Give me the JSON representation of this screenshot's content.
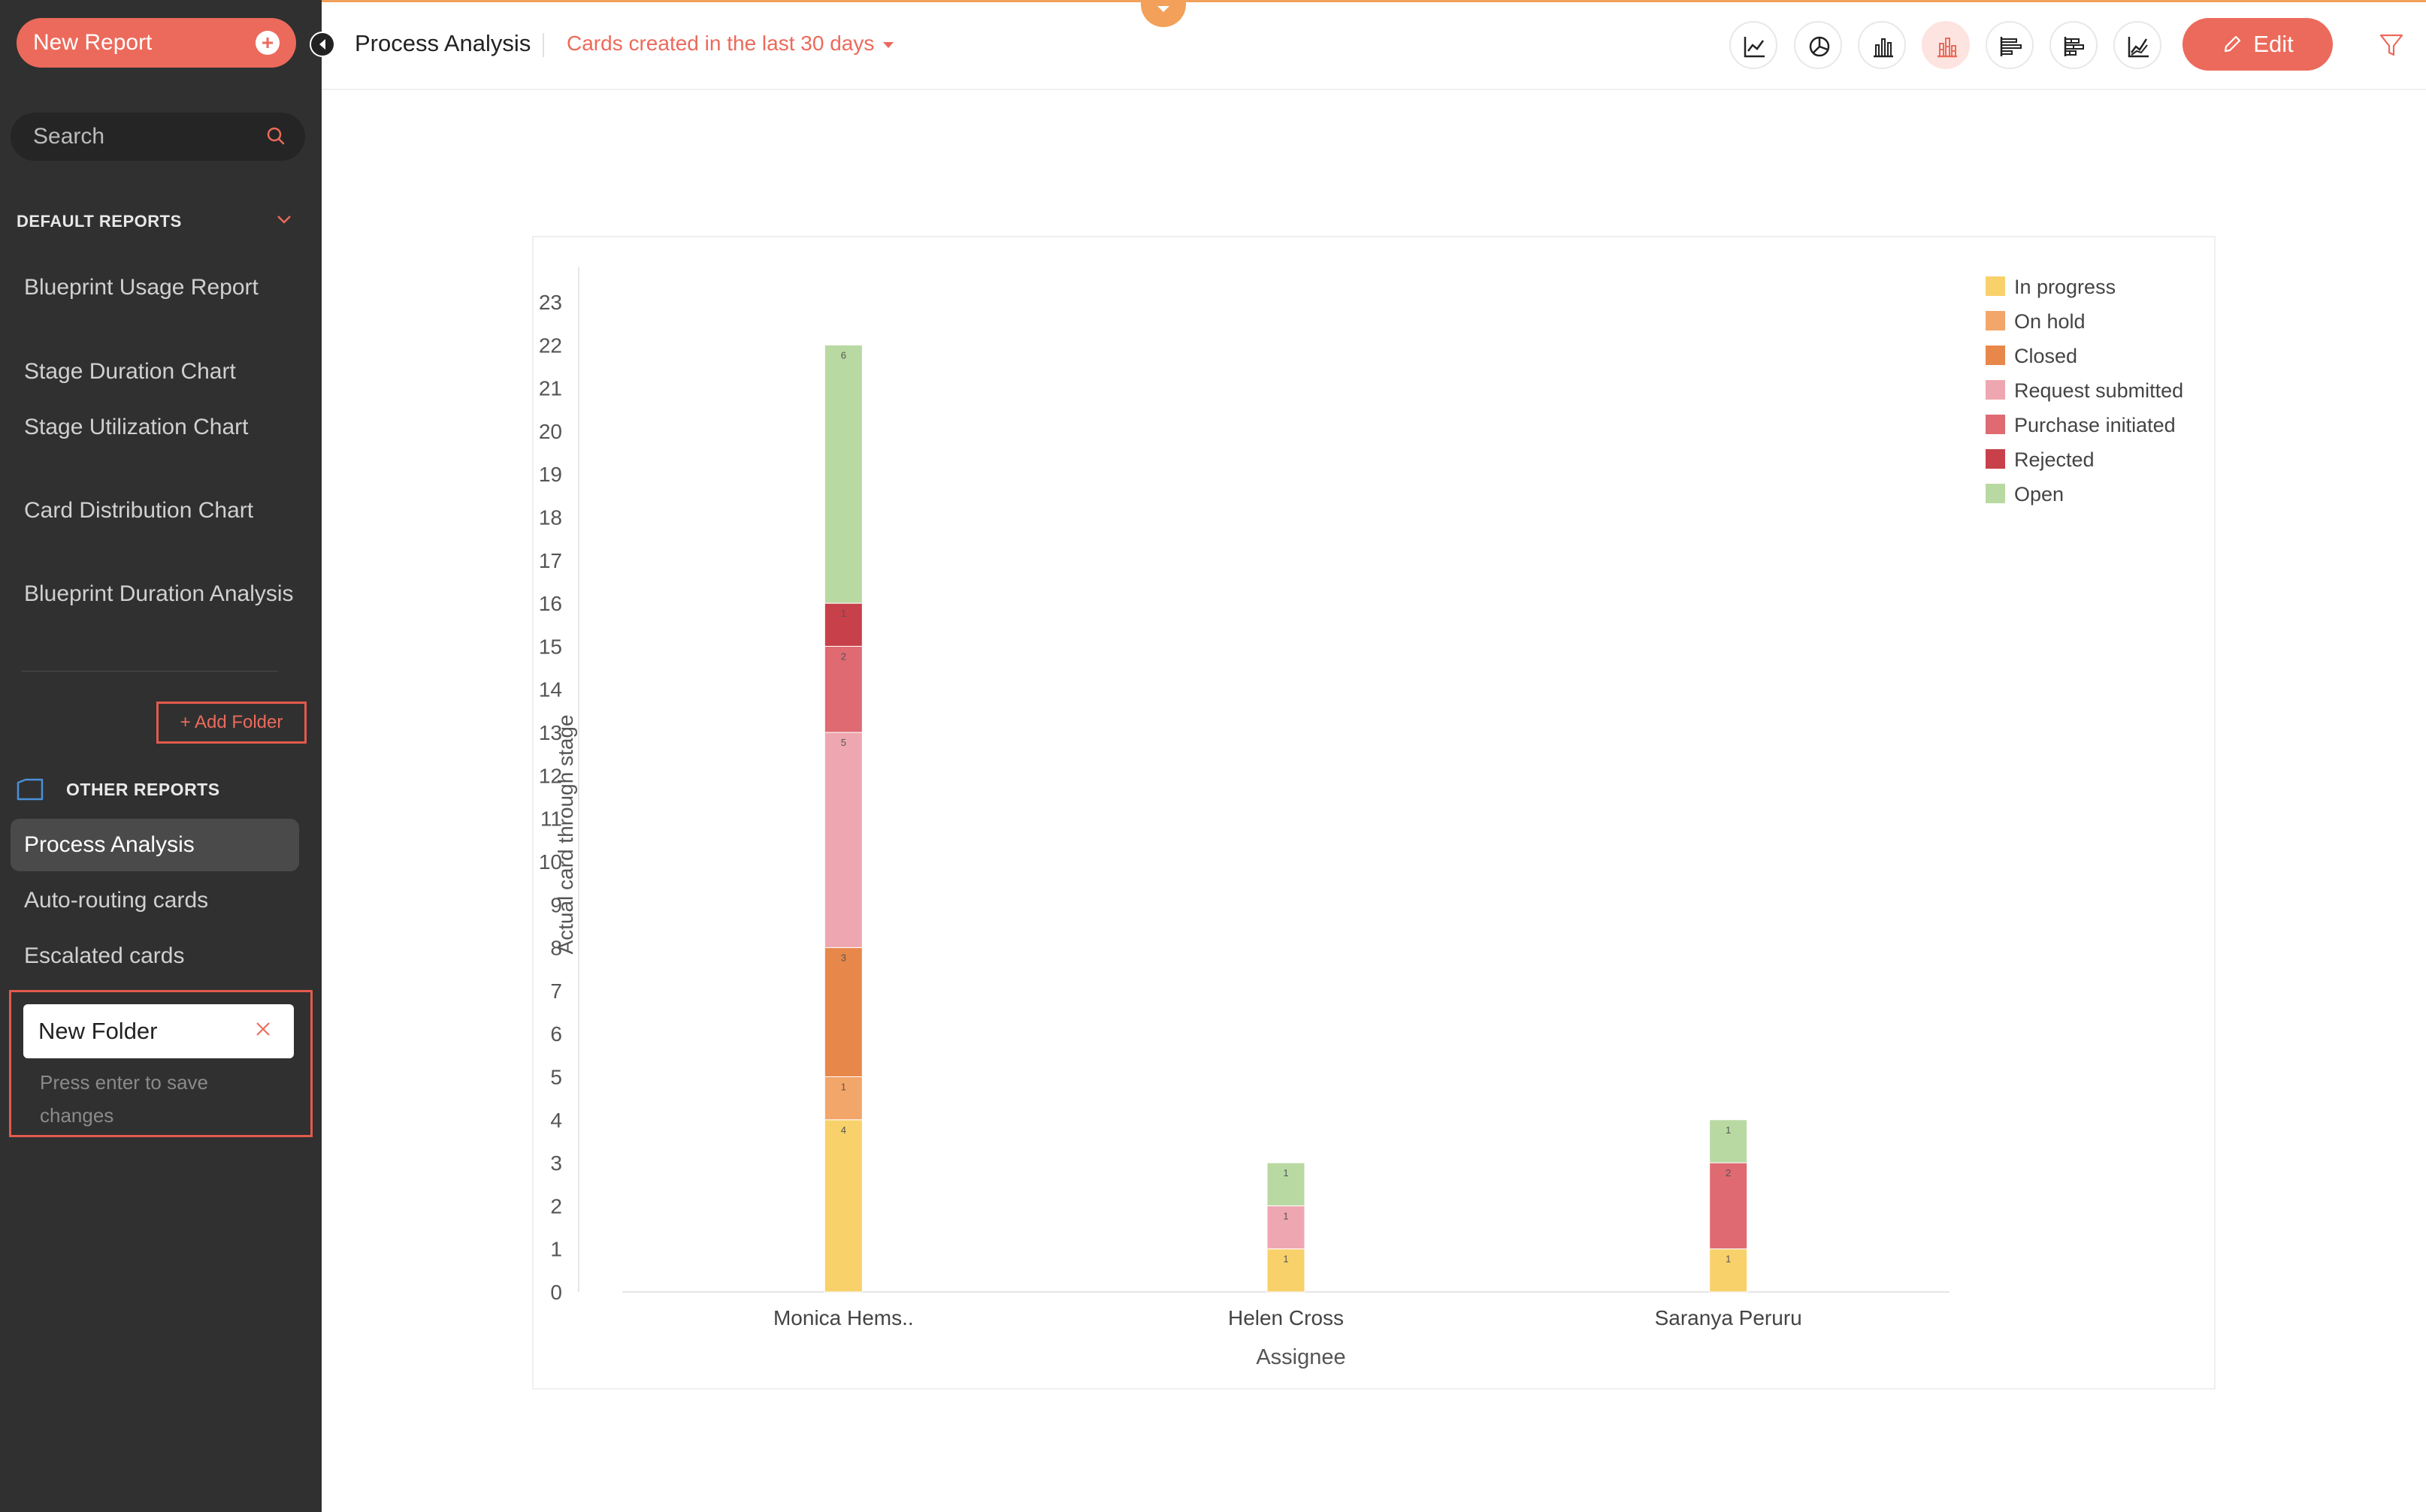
{
  "sidebar": {
    "new_report_label": "New Report",
    "search_placeholder": "Search",
    "default_reports_title": "DEFAULT REPORTS",
    "default_reports": [
      {
        "label": "Blueprint Usage Report"
      },
      {
        "label": "Stage Duration Chart"
      },
      {
        "label": "Stage Utilization Chart"
      },
      {
        "label": "Card Distribution Chart"
      },
      {
        "label": "Blueprint Duration Analysis"
      }
    ],
    "add_folder_label": "+ Add Folder",
    "other_reports_title": "OTHER REPORTS",
    "other_reports": [
      {
        "label": "Process Analysis",
        "active": true
      },
      {
        "label": "Auto-routing cards"
      },
      {
        "label": "Escalated cards"
      }
    ],
    "new_folder": {
      "value": "New Folder",
      "hint": "Press enter to save changes"
    }
  },
  "header": {
    "title": "Process Analysis",
    "filter_label": "Cards created in the last 30 days",
    "chart_types": [
      {
        "name": "line-chart-icon"
      },
      {
        "name": "pie-chart-icon"
      },
      {
        "name": "bar-chart-icon"
      },
      {
        "name": "stacked-bar-chart-icon",
        "active": true
      },
      {
        "name": "horizontal-bar-chart-icon"
      },
      {
        "name": "horizontal-stacked-bar-chart-icon"
      },
      {
        "name": "area-chart-icon"
      }
    ],
    "edit_label": "Edit",
    "accent_color": "#ec6a5b"
  },
  "chart_data": {
    "type": "bar",
    "stacked": true,
    "categories": [
      "Monica Hems..",
      "Helen Cross",
      "Saranya Peruru"
    ],
    "xlabel": "Assignee",
    "ylabel": "Actual card through stage",
    "ylim": [
      0,
      23
    ],
    "yticks": [
      0,
      1,
      2,
      3,
      4,
      5,
      6,
      7,
      8,
      9,
      10,
      11,
      12,
      13,
      14,
      15,
      16,
      17,
      18,
      19,
      20,
      21,
      22,
      23
    ],
    "legend_position": "top-right",
    "series": [
      {
        "name": "In progress",
        "color": "#f8d16b",
        "values": [
          4,
          1,
          1
        ]
      },
      {
        "name": "On hold",
        "color": "#f2a66a",
        "values": [
          1,
          0,
          0
        ]
      },
      {
        "name": "Closed",
        "color": "#e8874a",
        "values": [
          3,
          0,
          0
        ]
      },
      {
        "name": "Request submitted",
        "color": "#eea7b0",
        "values": [
          5,
          1,
          0
        ]
      },
      {
        "name": "Purchase initiated",
        "color": "#df6a72",
        "values": [
          2,
          0,
          2
        ]
      },
      {
        "name": "Rejected",
        "color": "#c8404a",
        "values": [
          1,
          0,
          0
        ]
      },
      {
        "name": "Open",
        "color": "#b9d9a2",
        "values": [
          6,
          1,
          1
        ]
      }
    ]
  }
}
